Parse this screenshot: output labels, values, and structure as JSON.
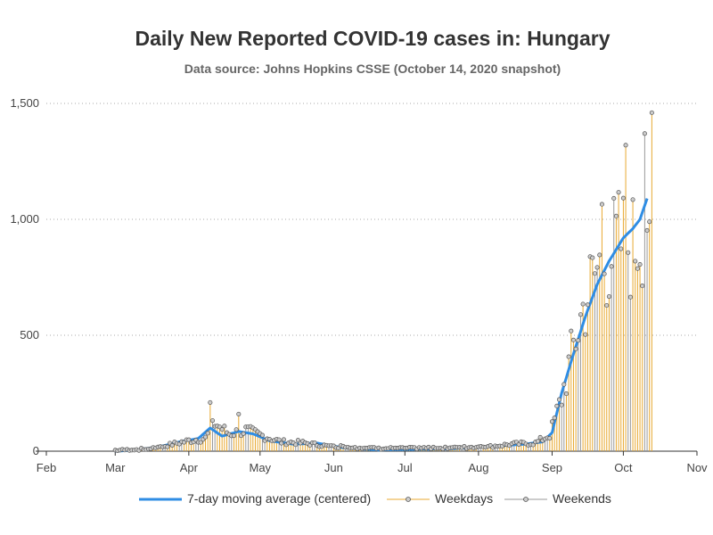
{
  "chart_data": {
    "type": "bar",
    "title": "Daily New Reported COVID-19 cases in: Hungary",
    "subtitle": "Data source: Johns Hopkins CSSE (October 14, 2020 snapshot)",
    "xlabel": "",
    "ylabel": "",
    "ylim": [
      0,
      1500
    ],
    "y_ticks": [
      0,
      500,
      1000,
      1500
    ],
    "y_tick_labels": [
      "0",
      "500",
      "1,000",
      "1,500"
    ],
    "x_ticks": [
      "Feb",
      "Mar",
      "Apr",
      "May",
      "Jun",
      "Jul",
      "Aug",
      "Sep",
      "Oct",
      "Nov"
    ],
    "x_range": [
      "2020-02-01",
      "2020-11-01"
    ],
    "grid": "horizontal dotted",
    "legend_position": "bottom",
    "colors": {
      "moving_average": "#2f8de4",
      "weekdays": "#e8a931",
      "weekends": "#999999",
      "marker_fill": "#cccccc"
    },
    "series": [
      {
        "name": "7-day moving average (centered)",
        "style": "line"
      },
      {
        "name": "Weekdays",
        "style": "needle"
      },
      {
        "name": "Weekends",
        "style": "needle"
      }
    ],
    "anchors": {
      "dates": [
        "2020-03-01",
        "2020-03-15",
        "2020-03-25",
        "2020-04-01",
        "2020-04-08",
        "2020-04-12",
        "2020-04-18",
        "2020-04-25",
        "2020-05-01",
        "2020-05-10",
        "2020-05-20",
        "2020-05-31",
        "2020-06-15",
        "2020-07-01",
        "2020-07-15",
        "2020-08-01",
        "2020-08-15",
        "2020-08-25",
        "2020-08-31",
        "2020-09-05",
        "2020-09-10",
        "2020-09-15",
        "2020-09-20",
        "2020-09-25",
        "2020-09-30",
        "2020-10-05",
        "2020-10-10",
        "2020-10-14"
      ],
      "values": [
        0,
        5,
        30,
        45,
        55,
        120,
        75,
        90,
        70,
        40,
        35,
        20,
        10,
        8,
        10,
        15,
        30,
        35,
        70,
        230,
        450,
        650,
        780,
        850,
        900,
        880,
        1000,
        1180
      ]
    },
    "moving_average_anchors": {
      "dates": [
        "2020-03-01",
        "2020-03-10",
        "2020-03-20",
        "2020-03-28",
        "2020-04-05",
        "2020-04-10",
        "2020-04-15",
        "2020-04-22",
        "2020-04-28",
        "2020-05-05",
        "2020-05-15",
        "2020-05-25",
        "2020-06-05",
        "2020-06-20",
        "2020-07-05",
        "2020-07-20",
        "2020-08-05",
        "2020-08-20",
        "2020-08-28",
        "2020-09-01",
        "2020-09-05",
        "2020-09-10",
        "2020-09-15",
        "2020-09-20",
        "2020-09-25",
        "2020-10-01",
        "2020-10-05",
        "2020-10-08",
        "2020-10-11"
      ],
      "values": [
        0,
        5,
        20,
        40,
        55,
        100,
        65,
        85,
        75,
        45,
        30,
        35,
        15,
        5,
        8,
        10,
        20,
        30,
        40,
        80,
        250,
        420,
        580,
        720,
        820,
        920,
        960,
        1000,
        1090
      ]
    },
    "spikes": [
      {
        "date": "2020-04-10",
        "value": 210
      },
      {
        "date": "2020-04-22",
        "value": 160
      },
      {
        "date": "2020-09-22",
        "value": 1065
      },
      {
        "date": "2020-10-02",
        "value": 1320
      },
      {
        "date": "2020-10-10",
        "value": 1370
      }
    ],
    "last_date": "2020-10-13"
  },
  "legend": {
    "ma_label": "7-day moving average (centered)",
    "weekday_label": "Weekdays",
    "weekend_label": "Weekends"
  }
}
